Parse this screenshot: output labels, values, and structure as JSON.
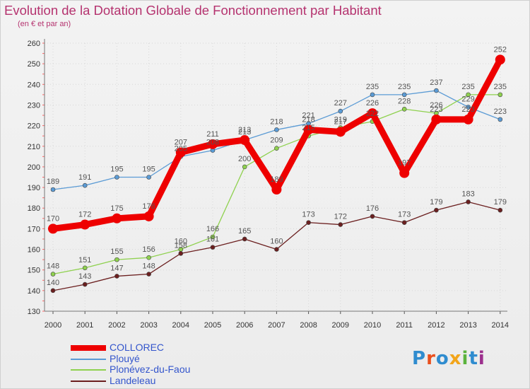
{
  "header": {
    "title": "Evolution de la Dotation Globale de Fonctionnement par Habitant",
    "subtitle": "(en € et par an)"
  },
  "logo": {
    "text": "Proxiti",
    "colors": [
      "#2f8ccf",
      "#e94f1d",
      "#2f8ccf",
      "#f2a51b",
      "#5bb33d",
      "#2f8ccf",
      "#9c2f8d"
    ]
  },
  "chart_data": {
    "type": "line",
    "x": [
      2000,
      2001,
      2002,
      2003,
      2004,
      2005,
      2006,
      2007,
      2008,
      2009,
      2010,
      2011,
      2012,
      2013,
      2014
    ],
    "ylim": [
      130,
      260
    ],
    "y_ticks": [
      130,
      140,
      150,
      160,
      170,
      180,
      190,
      200,
      210,
      220,
      230,
      240,
      250,
      260
    ],
    "grid": true,
    "legend_position": "bottom-left",
    "series": [
      {
        "name": "Plouyé",
        "color": "#5b9bd5",
        "values": [
          189,
          191,
          195,
          195,
          205,
          208,
          213,
          218,
          221,
          227,
          235,
          235,
          237,
          229,
          223
        ]
      },
      {
        "name": "Plonévez-du-Faou",
        "color": "#8fd14f",
        "values": [
          148,
          151,
          155,
          156,
          160,
          166,
          200,
          209,
          215,
          219,
          222,
          228,
          226,
          235,
          235
        ]
      },
      {
        "name": "Landeleau",
        "color": "#6b1f1f",
        "values": [
          140,
          143,
          147,
          148,
          158,
          161,
          165,
          160,
          173,
          172,
          176,
          173,
          179,
          183,
          179
        ]
      },
      {
        "name": "COLLOREC",
        "color": "#ee0000",
        "values": [
          170,
          172,
          175,
          176,
          207,
          211,
          213,
          189,
          218,
          217,
          226,
          197,
          223,
          223,
          252
        ]
      }
    ],
    "legend_order": [
      "COLLOREC",
      "Plouyé",
      "Plonévez-du-Faou",
      "Landeleau"
    ]
  }
}
